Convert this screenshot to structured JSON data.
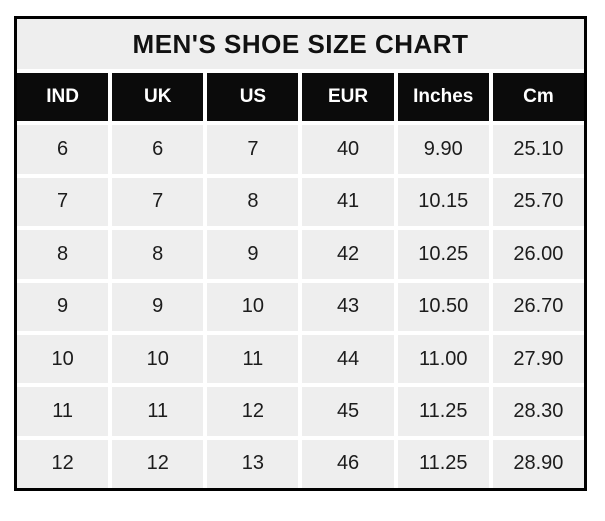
{
  "chart_data": {
    "type": "table",
    "title": "MEN'S SHOE SIZE CHART",
    "columns": [
      "IND",
      "UK",
      "US",
      "EUR",
      "Inches",
      "Cm"
    ],
    "rows": [
      [
        "6",
        "6",
        "7",
        "40",
        "9.90",
        "25.10"
      ],
      [
        "7",
        "7",
        "8",
        "41",
        "10.15",
        "25.70"
      ],
      [
        "8",
        "8",
        "9",
        "42",
        "10.25",
        "26.00"
      ],
      [
        "9",
        "9",
        "10",
        "43",
        "10.50",
        "26.70"
      ],
      [
        "10",
        "10",
        "11",
        "44",
        "11.00",
        "27.90"
      ],
      [
        "11",
        "11",
        "12",
        "45",
        "11.25",
        "28.30"
      ],
      [
        "12",
        "12",
        "13",
        "46",
        "11.25",
        "28.90"
      ]
    ],
    "layout": {
      "legend": "none",
      "grid": "white gridlines between cells",
      "header_position": "top"
    }
  },
  "colors": {
    "border": "#000000",
    "gridline": "#ffffff",
    "title_bg": "#eeeeee",
    "title_text": "#111111",
    "header_bg": "#0b0b0b",
    "header_text": "#ffffff",
    "cell_bg": "#eeeeee",
    "cell_text": "#1c1c1c"
  }
}
